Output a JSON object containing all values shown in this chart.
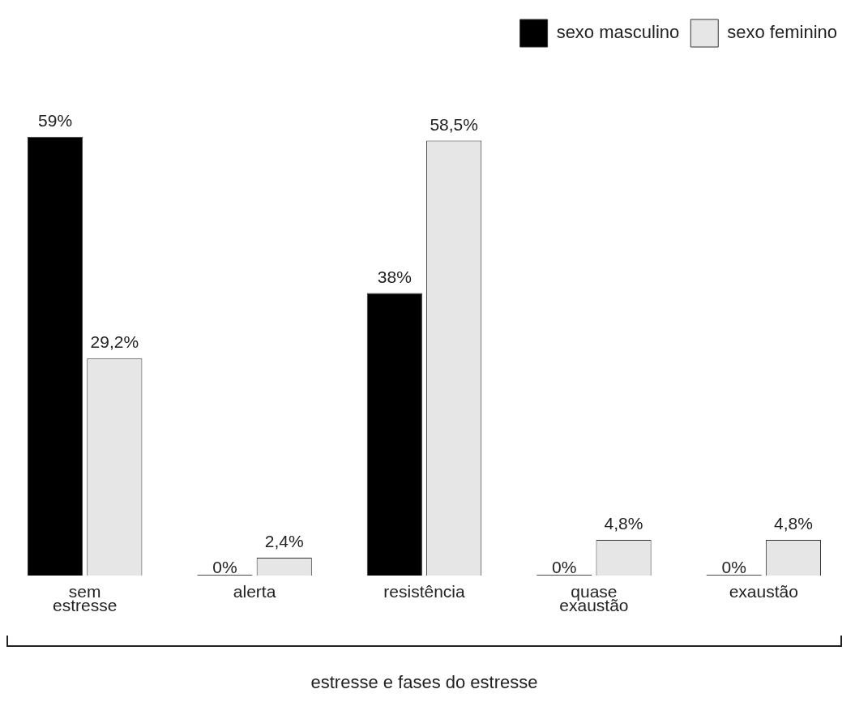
{
  "chart_data": {
    "type": "bar",
    "xlabel": "estresse e fases do estresse",
    "categories": [
      "sem estresse",
      "alerta",
      "resistência",
      "quase exaustão",
      "exaustão"
    ],
    "series": [
      {
        "name": "sexo masculino",
        "color": "#000000",
        "values": [
          59,
          0,
          38,
          0,
          0
        ],
        "value_labels": [
          "59%",
          "0%",
          "38%",
          "0%",
          "0%"
        ]
      },
      {
        "name": "sexo feminino",
        "color": "#e6e6e6",
        "values": [
          29.2,
          2.4,
          58.5,
          4.8,
          4.8
        ],
        "value_labels": [
          "29,2%",
          "2,4%",
          "58,5%",
          "4,8%",
          "4,8%"
        ]
      }
    ],
    "legend": "top right",
    "grid": false
  }
}
